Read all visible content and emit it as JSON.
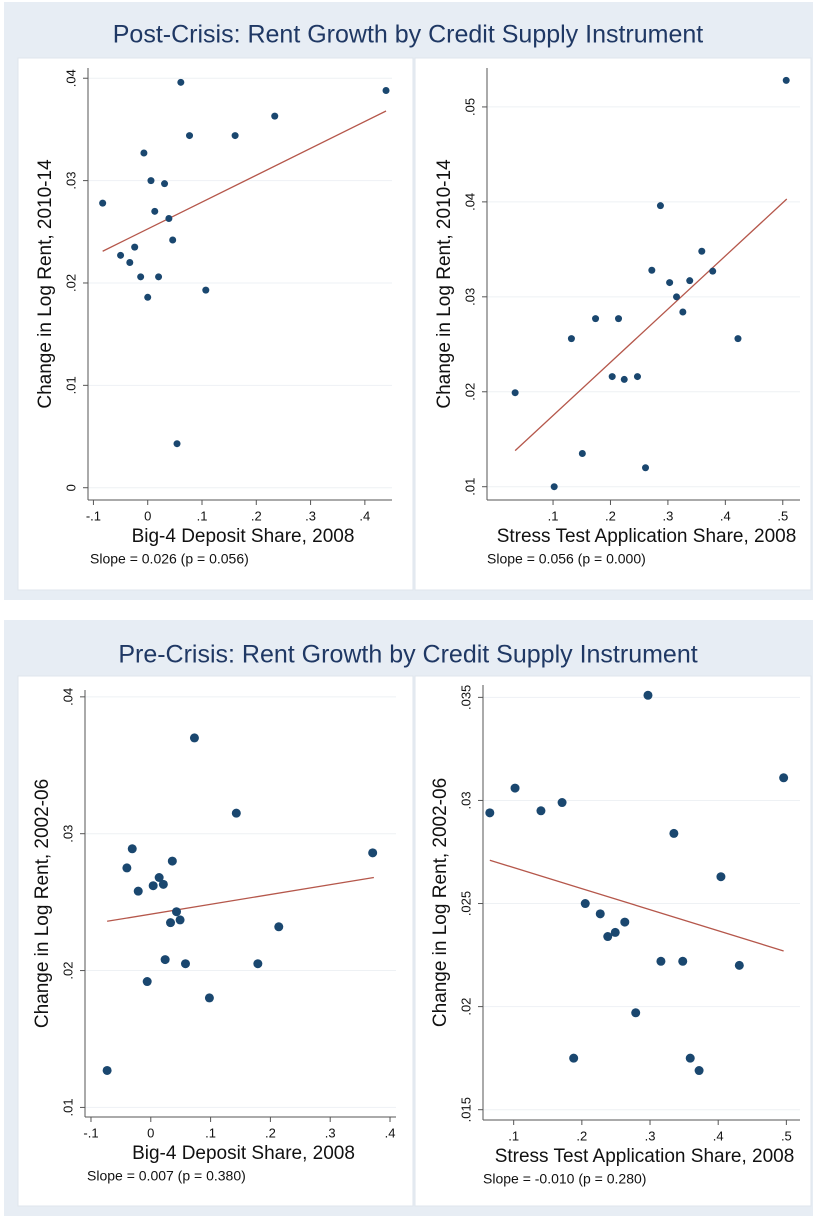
{
  "figure_titles": [
    "Post-Crisis: Rent Growth by Credit Supply Instrument",
    "Pre-Crisis: Rent Growth by Credit Supply Instrument"
  ],
  "chart_data": [
    {
      "type": "scatter",
      "x_label": "Big-4 Deposit Share, 2008",
      "y_label": "Change in Log Rent, 2010-14",
      "annotation": "Slope = 0.026 (p = 0.056)",
      "xlim": [
        -0.11,
        0.45
      ],
      "ylim": [
        -0.0012,
        0.041
      ],
      "xticks": [
        {
          "value": -0.1,
          "label": "-.1"
        },
        0,
        {
          "value": 0.1,
          "label": ".1"
        },
        {
          "value": 0.2,
          "label": ".2"
        },
        {
          "value": 0.3,
          "label": ".3"
        },
        {
          "value": 0.4,
          "label": ".4"
        }
      ],
      "yticks": [
        0,
        {
          "value": 0.01,
          "label": ".01"
        },
        {
          "value": 0.02,
          "label": ".02"
        },
        {
          "value": 0.03,
          "label": ".03"
        },
        {
          "value": 0.04,
          "label": ".04"
        }
      ],
      "grid": true,
      "color": "#1a476f",
      "x": [
        -0.083,
        -0.05,
        -0.033,
        -0.024,
        -0.013,
        -0.007,
        0.0,
        0.006,
        0.013,
        0.02,
        0.031,
        0.039,
        0.046,
        0.054,
        0.061,
        0.077,
        0.107,
        0.161,
        0.234,
        0.439
      ],
      "values": [
        0.0278,
        0.0227,
        0.022,
        0.0235,
        0.0206,
        0.0327,
        0.0186,
        0.03,
        0.027,
        0.0206,
        0.0297,
        0.0263,
        0.0242,
        0.0043,
        0.0396,
        0.0344,
        0.0193,
        0.0344,
        0.0363,
        0.0388
      ],
      "fit_line": {
        "x": [
          -0.083,
          0.439
        ],
        "values": [
          0.0231,
          0.0368
        ],
        "color": "#b5574b"
      }
    },
    {
      "type": "scatter",
      "x_label": "Stress Test Application Share, 2008",
      "y_label": "Change in Log Rent, 2010-14",
      "annotation": "Slope = 0.056 (p = 0.000)",
      "xlim": [
        -0.015,
        0.53
      ],
      "ylim": [
        0.0086,
        0.0541
      ],
      "xticks": [
        {
          "value": 0.1,
          "label": ".1"
        },
        {
          "value": 0.2,
          "label": ".2"
        },
        {
          "value": 0.3,
          "label": ".3"
        },
        {
          "value": 0.4,
          "label": ".4"
        },
        {
          "value": 0.5,
          "label": ".5"
        }
      ],
      "yticks": [
        {
          "value": 0.01,
          "label": ".01"
        },
        {
          "value": 0.02,
          "label": ".02"
        },
        {
          "value": 0.03,
          "label": ".03"
        },
        {
          "value": 0.04,
          "label": ".04"
        },
        {
          "value": 0.05,
          "label": ".05"
        }
      ],
      "grid": true,
      "color": "#1a476f",
      "x": [
        0.034,
        0.102,
        0.132,
        0.151,
        0.174,
        0.203,
        0.214,
        0.224,
        0.247,
        0.261,
        0.272,
        0.287,
        0.303,
        0.315,
        0.326,
        0.338,
        0.359,
        0.378,
        0.422,
        0.506
      ],
      "values": [
        0.0199,
        0.01,
        0.0256,
        0.0135,
        0.0277,
        0.0216,
        0.0277,
        0.0213,
        0.0216,
        0.012,
        0.0328,
        0.0396,
        0.0315,
        0.03,
        0.0284,
        0.0317,
        0.0348,
        0.0327,
        0.0256,
        0.0528
      ],
      "fit_line": {
        "x": [
          0.034,
          0.507
        ],
        "values": [
          0.0138,
          0.0403
        ],
        "color": "#b5574b"
      }
    },
    {
      "type": "scatter",
      "x_label": "Big-4 Deposit Share, 2008",
      "y_label": "Change in Log Rent, 2002-06",
      "annotation": "Slope = 0.007 (p = 0.380)",
      "xlim": [
        -0.11,
        0.41
      ],
      "ylim": [
        0.0093,
        0.0405
      ],
      "xticks": [
        {
          "value": -0.1,
          "label": "-.1"
        },
        0,
        {
          "value": 0.1,
          "label": ".1"
        },
        {
          "value": 0.2,
          "label": ".2"
        },
        {
          "value": 0.3,
          "label": ".3"
        },
        {
          "value": 0.4,
          "label": ".4"
        }
      ],
      "yticks": [
        {
          "value": 0.01,
          "label": ".01"
        },
        {
          "value": 0.02,
          "label": ".02"
        },
        {
          "value": 0.03,
          "label": ".03"
        },
        {
          "value": 0.04,
          "label": ".04"
        }
      ],
      "grid": true,
      "color": "#1a476f",
      "x": [
        -0.073,
        -0.04,
        -0.031,
        -0.021,
        0.004,
        0.014,
        0.021,
        0.024,
        0.033,
        0.036,
        0.043,
        0.049,
        -0.006,
        0.058,
        0.073,
        0.098,
        0.143,
        0.179,
        0.214,
        0.371
      ],
      "values": [
        0.0127,
        0.0275,
        0.0289,
        0.0258,
        0.0262,
        0.0268,
        0.0263,
        0.0208,
        0.0235,
        0.028,
        0.0243,
        0.0237,
        0.0192,
        0.0205,
        0.037,
        0.018,
        0.0315,
        0.0205,
        0.0232,
        0.0286
      ],
      "fit_line": {
        "x": [
          -0.073,
          0.373
        ],
        "values": [
          0.0236,
          0.0268
        ],
        "color": "#b5574b"
      }
    },
    {
      "type": "scatter",
      "x_label": "Stress Test Application Share, 2008",
      "y_label": "Change in Log Rent, 2002-06",
      "annotation": "Slope = -0.010 (p = 0.280)",
      "xlim": [
        0.055,
        0.52
      ],
      "ylim": [
        0.0145,
        0.0356
      ],
      "xticks": [
        {
          "value": 0.1,
          "label": ".1"
        },
        {
          "value": 0.2,
          "label": ".2"
        },
        {
          "value": 0.3,
          "label": ".3"
        },
        {
          "value": 0.4,
          "label": ".4"
        },
        {
          "value": 0.5,
          "label": ".5"
        }
      ],
      "yticks": [
        {
          "value": 0.015,
          "label": ".015"
        },
        {
          "value": 0.02,
          "label": ".02"
        },
        {
          "value": 0.025,
          "label": ".025"
        },
        {
          "value": 0.03,
          "label": ".03"
        },
        {
          "value": 0.035,
          "label": ".035"
        }
      ],
      "grid": true,
      "color": "#1a476f",
      "x": [
        0.065,
        0.102,
        0.14,
        0.171,
        0.188,
        0.205,
        0.227,
        0.238,
        0.249,
        0.263,
        0.279,
        0.297,
        0.316,
        0.335,
        0.348,
        0.359,
        0.372,
        0.404,
        0.431,
        0.496
      ],
      "values": [
        0.0294,
        0.0306,
        0.0295,
        0.0299,
        0.0175,
        0.025,
        0.0245,
        0.0234,
        0.0236,
        0.0241,
        0.0197,
        0.0351,
        0.0222,
        0.0284,
        0.0222,
        0.0175,
        0.0169,
        0.0263,
        0.022,
        0.0311
      ],
      "fit_line": {
        "x": [
          0.065,
          0.496
        ],
        "values": [
          0.0271,
          0.0227
        ],
        "color": "#b5574b"
      }
    }
  ]
}
